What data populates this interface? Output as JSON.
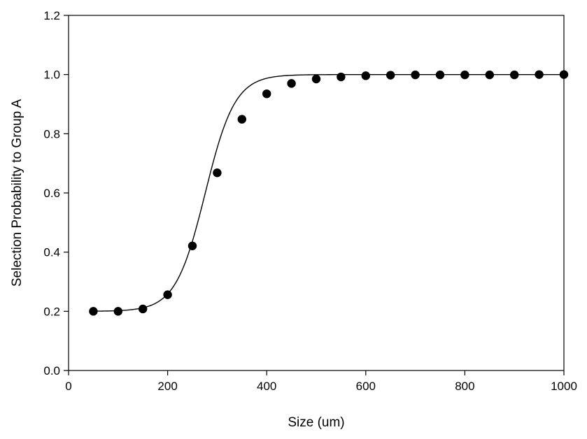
{
  "chart_data": {
    "type": "scatter",
    "title": "",
    "xlabel": "Size (um)",
    "ylabel": "Selection Probability to Group A",
    "xlim": [
      0,
      1000
    ],
    "ylim": [
      0.0,
      1.2
    ],
    "x_ticks": [
      0,
      200,
      400,
      600,
      800,
      1000
    ],
    "x_tick_labels": [
      "0",
      "200",
      "400",
      "600",
      "800",
      "1000"
    ],
    "y_ticks": [
      0.0,
      0.2,
      0.4,
      0.6,
      0.8,
      1.0,
      1.2
    ],
    "y_tick_labels": [
      "0.0",
      "0.2",
      "0.4",
      "0.6",
      "0.8",
      "1.0",
      "1.2"
    ],
    "grid": false,
    "legend": "none",
    "marker_color": "#000000",
    "line_color": "#000000",
    "series": [
      {
        "x": [
          50,
          100,
          150,
          200,
          250,
          300,
          350,
          400,
          450,
          500,
          550,
          600,
          650,
          700,
          750,
          800,
          850,
          900,
          950,
          1000
        ],
        "y": [
          0.2,
          0.2,
          0.208,
          0.256,
          0.421,
          0.668,
          0.849,
          0.935,
          0.97,
          0.985,
          0.992,
          0.996,
          0.998,
          0.999,
          0.999,
          0.999,
          0.999,
          0.999,
          1.0,
          1.0
        ]
      }
    ],
    "fit_curve": {
      "model": "logistic",
      "lower": 0.2,
      "upper": 1.0,
      "midpoint": 276,
      "scale": 30
    }
  }
}
